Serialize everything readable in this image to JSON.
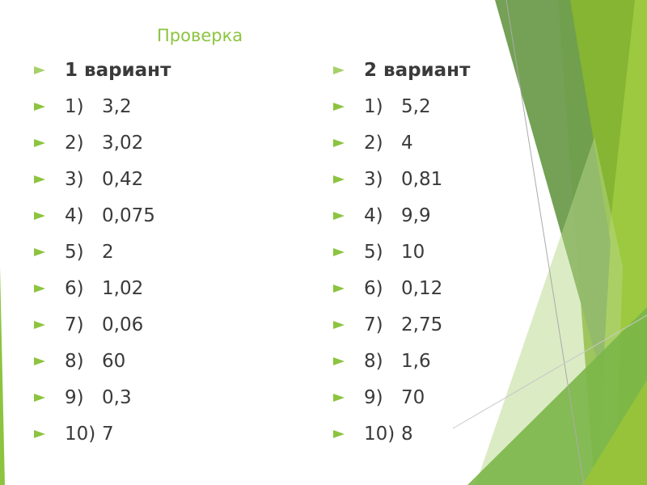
{
  "title": "Проверка",
  "columns": [
    {
      "heading": "1 вариант",
      "items": [
        {
          "n": "1)",
          "v": "3,2"
        },
        {
          "n": "2)",
          "v": "3,02"
        },
        {
          "n": "3)",
          "v": "0,42"
        },
        {
          "n": "4)",
          "v": "0,075"
        },
        {
          "n": "5)",
          "v": "2"
        },
        {
          "n": "6)",
          "v": "1,02"
        },
        {
          "n": "7)",
          "v": "0,06"
        },
        {
          "n": "8)",
          "v": "60"
        },
        {
          "n": "9)",
          "v": "0,3"
        },
        {
          "n": "10)",
          "v": "7"
        }
      ]
    },
    {
      "heading": "2 вариант",
      "items": [
        {
          "n": "1)",
          "v": "5,2"
        },
        {
          "n": "2)",
          "v": "4"
        },
        {
          "n": "3)",
          "v": "0,81"
        },
        {
          "n": "4)",
          "v": "9,9"
        },
        {
          "n": "5)",
          "v": "10"
        },
        {
          "n": "6)",
          "v": "0,12"
        },
        {
          "n": "7)",
          "v": "2,75"
        },
        {
          "n": "8)",
          "v": "1,6"
        },
        {
          "n": "9)",
          "v": "70"
        },
        {
          "n": "10)",
          "v": "8"
        }
      ]
    }
  ],
  "colors": {
    "accent": "#8cc43f",
    "dark_green": "#6f9e50",
    "mid_green": "#86b433",
    "light_green": "#9dc940",
    "text": "#3a3a3a"
  }
}
